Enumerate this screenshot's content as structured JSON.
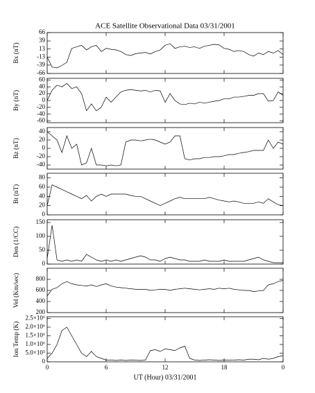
{
  "title": "ACE Satellite Observational Data   03/31/2001",
  "xlabel": "UT (Hour)  03/31/2001",
  "x": [
    0,
    0.5,
    1,
    1.5,
    2,
    2.5,
    3,
    3.5,
    4,
    4.5,
    5,
    5.5,
    6,
    6.5,
    7,
    7.5,
    8,
    8.5,
    9,
    9.5,
    10,
    10.5,
    11,
    11.5,
    12,
    12.5,
    13,
    13.5,
    14,
    14.5,
    15,
    15.5,
    16,
    16.5,
    17,
    17.5,
    18,
    18.5,
    19,
    19.5,
    20,
    20.5,
    21,
    21.5,
    22,
    22.5,
    23,
    23.5,
    24
  ],
  "xlim": [
    0,
    24
  ],
  "xticks": [
    0,
    6,
    12,
    18,
    {
      "value": 24,
      "label": "0"
    }
  ],
  "chart_data": [
    {
      "type": "line",
      "ylabel": "Bx (nT)",
      "ylim": [
        -66,
        66
      ],
      "yticks": [
        66,
        39,
        13,
        -13,
        -39,
        -66
      ],
      "values": [
        -13,
        -45,
        -48,
        -40,
        -30,
        15,
        20,
        25,
        10,
        20,
        25,
        5,
        15,
        12,
        10,
        5,
        -5,
        -8,
        -2,
        0,
        2,
        -3,
        5,
        10,
        25,
        30,
        15,
        20,
        22,
        18,
        20,
        15,
        22,
        25,
        28,
        26,
        15,
        12,
        5,
        8,
        5,
        -5,
        -10,
        0,
        -5,
        5,
        0,
        8,
        -5
      ]
    },
    {
      "type": "line",
      "ylabel": "By (nT)",
      "ylim": [
        -65,
        65
      ],
      "yticks": [
        60,
        40,
        20,
        0,
        -20,
        -40,
        -60
      ],
      "values": [
        0,
        30,
        45,
        40,
        50,
        35,
        40,
        20,
        -30,
        -10,
        -30,
        -20,
        10,
        -5,
        10,
        25,
        30,
        32,
        30,
        28,
        30,
        25,
        30,
        28,
        -5,
        20,
        0,
        -10,
        -12,
        -8,
        -10,
        -5,
        -8,
        -5,
        -2,
        0,
        5,
        5,
        10,
        10,
        12,
        15,
        15,
        20,
        20,
        -2,
        0,
        25,
        15
      ]
    },
    {
      "type": "line",
      "ylabel": "Bz (nT)",
      "ylim": [
        -50,
        50
      ],
      "yticks": [
        40,
        20,
        0,
        -20,
        -40
      ],
      "values": [
        40,
        30,
        20,
        -10,
        30,
        0,
        10,
        -40,
        -35,
        0,
        -40,
        -40,
        -42,
        -40,
        -42,
        -40,
        15,
        20,
        20,
        18,
        20,
        22,
        20,
        15,
        10,
        15,
        30,
        30,
        -25,
        -28,
        -25,
        -25,
        -22,
        -22,
        -20,
        -20,
        -18,
        -15,
        -15,
        -12,
        -10,
        -8,
        -5,
        -5,
        -5,
        20,
        0,
        15,
        10
      ]
    },
    {
      "type": "line",
      "ylabel": "Bt (nT)",
      "ylim": [
        0,
        90
      ],
      "yticks": [
        80,
        60,
        40,
        20,
        0
      ],
      "values": [
        20,
        65,
        60,
        55,
        50,
        45,
        40,
        35,
        42,
        30,
        40,
        45,
        40,
        45,
        45,
        45,
        45,
        42,
        40,
        40,
        35,
        30,
        25,
        20,
        25,
        30,
        35,
        38,
        35,
        35,
        35,
        35,
        35,
        38,
        35,
        32,
        30,
        28,
        30,
        28,
        25,
        25,
        25,
        28,
        25,
        35,
        28,
        22,
        20
      ]
    },
    {
      "type": "line",
      "ylabel": "Den (1/CC)",
      "ylim": [
        0,
        160
      ],
      "yticks": [
        150,
        100,
        50,
        0
      ],
      "values": [
        20,
        140,
        15,
        10,
        15,
        10,
        15,
        10,
        35,
        25,
        15,
        10,
        15,
        10,
        15,
        10,
        15,
        20,
        25,
        30,
        25,
        15,
        15,
        10,
        20,
        25,
        20,
        15,
        15,
        10,
        10,
        10,
        15,
        10,
        10,
        10,
        15,
        10,
        10,
        10,
        10,
        15,
        20,
        25,
        15,
        10,
        5,
        5,
        5
      ]
    },
    {
      "type": "line",
      "ylabel": "Vel (Km/sec)",
      "ylim": [
        200,
        1000
      ],
      "yticks": [
        800,
        600,
        400,
        200
      ],
      "values": [
        500,
        620,
        650,
        720,
        760,
        720,
        700,
        690,
        680,
        700,
        670,
        700,
        720,
        680,
        660,
        650,
        640,
        630,
        620,
        620,
        620,
        600,
        610,
        620,
        620,
        600,
        620,
        630,
        640,
        630,
        620,
        610,
        620,
        630,
        620,
        640,
        630,
        640,
        620,
        610,
        600,
        600,
        580,
        590,
        600,
        700,
        720,
        760,
        780
      ]
    },
    {
      "type": "line",
      "ylabel": "Ion Temp (K)",
      "ylim": [
        0,
        2600000
      ],
      "yticks": [
        {
          "value": 2500000,
          "label": "2.5×10⁶"
        },
        {
          "value": 2000000,
          "label": "2.0×10⁶"
        },
        {
          "value": 1500000,
          "label": "1.5×10⁶"
        },
        {
          "value": 1000000,
          "label": "1.0×10⁶"
        },
        {
          "value": 500000,
          "label": "5.0×10⁵"
        },
        0
      ],
      "values": [
        200000,
        500000,
        1000000,
        1800000,
        2000000,
        1500000,
        1000000,
        500000,
        300000,
        600000,
        300000,
        200000,
        100000,
        100000,
        80000,
        100000,
        80000,
        100000,
        90000,
        80000,
        100000,
        650000,
        700000,
        600000,
        750000,
        700000,
        650000,
        800000,
        900000,
        200000,
        100000,
        80000,
        100000,
        120000,
        100000,
        80000,
        100000,
        90000,
        100000,
        120000,
        100000,
        150000,
        150000,
        120000,
        200000,
        150000,
        200000,
        300000,
        350000
      ]
    }
  ]
}
